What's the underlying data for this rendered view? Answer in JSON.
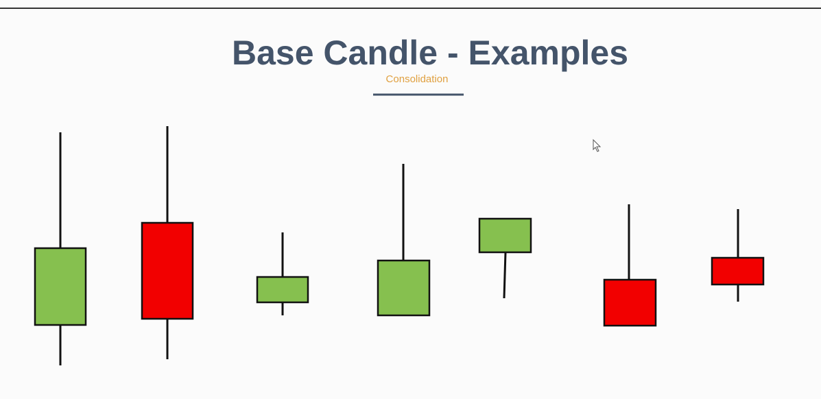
{
  "header": {
    "title": "Base Candle - Examples",
    "subtitle": "Consolidation"
  }
}
